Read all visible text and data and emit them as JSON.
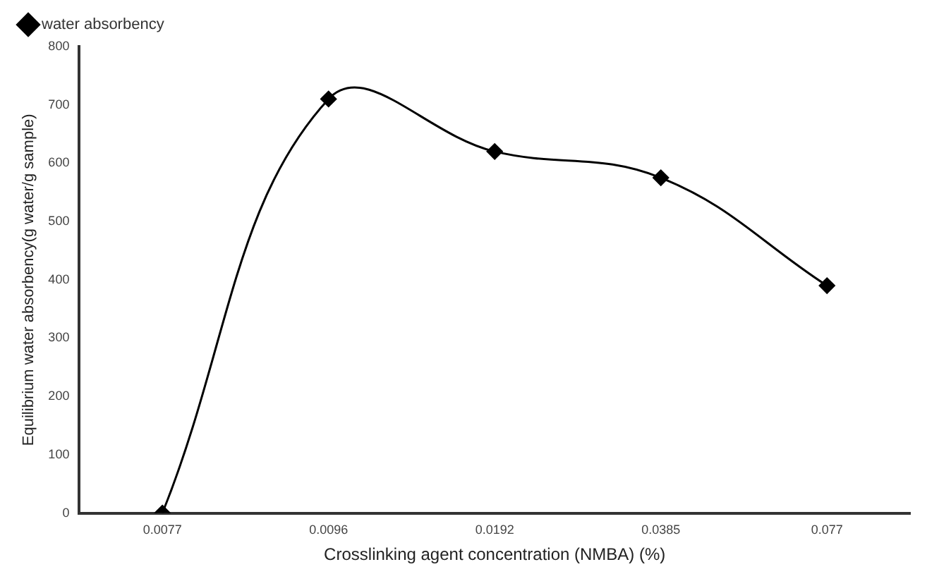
{
  "chart_data": {
    "type": "line",
    "xlabel": "Crosslinking agent concentration (NMBA) (%)",
    "ylabel": "Equilibrium water absorbency(g water/g sample)",
    "categories": [
      "0.0077",
      "0.0096",
      "0.0192",
      "0.0385",
      "0.077"
    ],
    "series": [
      {
        "name": "water absorbency",
        "color": "#000000",
        "values": [
          0,
          710,
          620,
          575,
          390
        ]
      }
    ],
    "ylim": [
      0,
      800
    ],
    "yticks": [
      0,
      100,
      200,
      300,
      400,
      500,
      600,
      700,
      800
    ],
    "grid": false,
    "legend": "top left",
    "marker": "diamond",
    "line_style": "solid"
  }
}
